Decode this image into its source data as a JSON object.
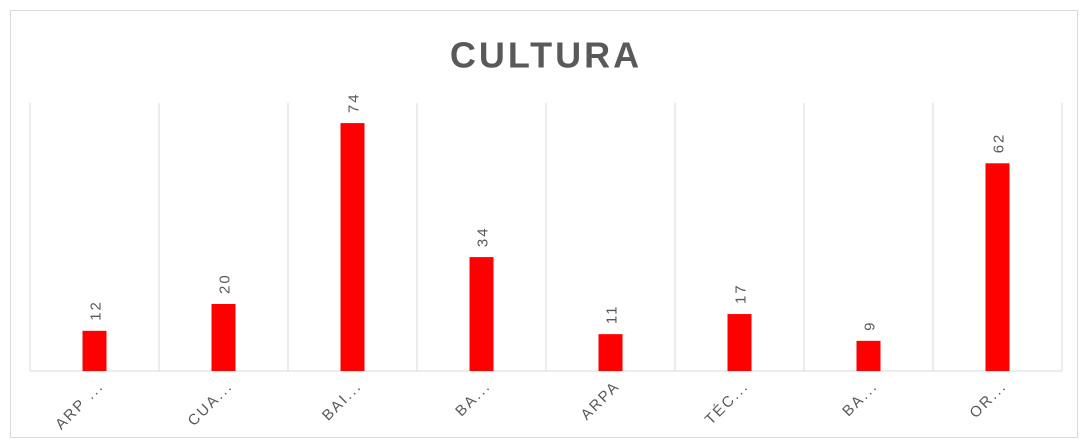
{
  "chart_data": {
    "type": "bar",
    "title": "CULTURA",
    "categories": [
      "ARP ...",
      "CUA...",
      "BAI...",
      "BA...",
      "ARPA",
      "TÉC...",
      "BA...",
      "OR..."
    ],
    "values": [
      12,
      20,
      74,
      34,
      11,
      17,
      9,
      62
    ],
    "color": "#ff0000",
    "ylim": [
      0,
      80
    ],
    "grid": true
  }
}
